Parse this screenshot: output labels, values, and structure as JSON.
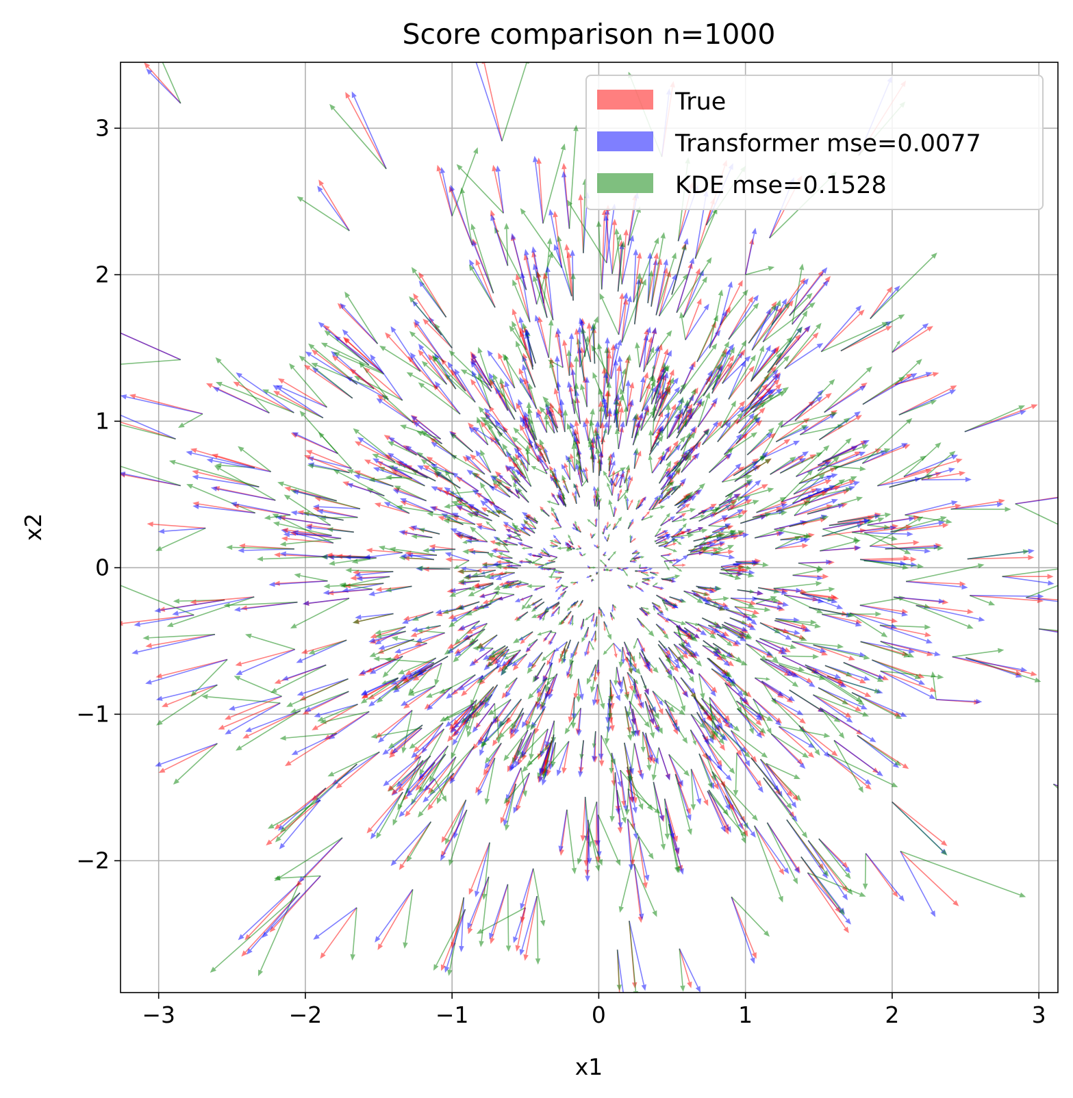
{
  "chart_data": {
    "type": "quiver",
    "title": "Score comparison n=1000",
    "xlabel": "x1",
    "ylabel": "x2",
    "xlim": [
      -3.26,
      3.13
    ],
    "ylim": [
      -2.9,
      3.45
    ],
    "x_ticks": [
      -3,
      -2,
      -1,
      0,
      1,
      2,
      3
    ],
    "y_ticks": [
      -2,
      -1,
      0,
      1,
      2,
      3
    ],
    "x_tick_labels": [
      "−3",
      "−2",
      "−1",
      "0",
      "1",
      "2",
      "3"
    ],
    "y_tick_labels": [
      "−2",
      "−1",
      "0",
      "1",
      "2",
      "3"
    ],
    "grid": true,
    "legend_position": "upper-right",
    "sample_count": 1000,
    "field": "arrows point outward from the origin, length grows with distance (score field)",
    "series": [
      {
        "name": "True",
        "color": "#ff0000",
        "alpha": 0.5
      },
      {
        "name": "Transformer mse=0.0077",
        "color": "#0000ff",
        "alpha": 0.5
      },
      {
        "name": "KDE mse=0.1528",
        "color": "#008000",
        "alpha": 0.5
      }
    ],
    "sample_vectors": [
      {
        "x": -2.85,
        "y": 3.17,
        "u": -0.25,
        "v": 0.28
      },
      {
        "x": -1.7,
        "y": 2.3,
        "u": -0.21,
        "v": 0.35
      },
      {
        "x": -1.0,
        "y": 2.4,
        "u": -0.1,
        "v": 0.35
      },
      {
        "x": -0.65,
        "y": 2.42,
        "u": -0.07,
        "v": 0.33
      },
      {
        "x": -0.38,
        "y": 2.35,
        "u": -0.03,
        "v": 0.45
      },
      {
        "x": -2.85,
        "y": 1.42,
        "u": -0.45,
        "v": 0.2
      },
      {
        "x": -2.7,
        "y": 1.05,
        "u": -0.5,
        "v": 0.13
      },
      {
        "x": -2.85,
        "y": 0.56,
        "u": -0.42,
        "v": 0.08
      },
      {
        "x": -2.68,
        "y": 0.27,
        "u": -0.4,
        "v": 0.03
      },
      {
        "x": -2.55,
        "y": -0.22,
        "u": -0.45,
        "v": -0.07
      },
      {
        "x": -2.6,
        "y": -0.8,
        "u": -0.38,
        "v": -0.15
      },
      {
        "x": -2.6,
        "y": -1.2,
        "u": -0.4,
        "v": -0.2
      },
      {
        "x": -1.65,
        "y": -2.32,
        "u": -0.25,
        "v": -0.35
      },
      {
        "x": -0.92,
        "y": -2.25,
        "u": -0.08,
        "v": -0.35
      },
      {
        "x": -0.5,
        "y": -2.32,
        "u": -0.06,
        "v": -0.3
      },
      {
        "x": 0.55,
        "y": -2.6,
        "u": 0.08,
        "v": -0.27
      },
      {
        "x": 1.5,
        "y": -1.85,
        "u": 0.2,
        "v": -0.2
      },
      {
        "x": 1.82,
        "y": -1.95,
        "u": 0.22,
        "v": -0.3
      },
      {
        "x": 2.3,
        "y": -0.9,
        "u": 0.3,
        "v": -0.02
      },
      {
        "x": 2.75,
        "y": -0.06,
        "u": 0.35,
        "v": 0.0
      },
      {
        "x": 2.4,
        "y": 0.4,
        "u": 0.37,
        "v": 0.06
      },
      {
        "x": 2.2,
        "y": 0.6,
        "u": 0.3,
        "v": 0.05
      },
      {
        "x": 2.02,
        "y": 1.25,
        "u": 0.3,
        "v": 0.08
      },
      {
        "x": 2.0,
        "y": 1.47,
        "u": 0.28,
        "v": 0.18
      },
      {
        "x": 1.65,
        "y": 1.48,
        "u": 0.35,
        "v": 0.17
      },
      {
        "x": 1.85,
        "y": 1.7,
        "u": 0.15,
        "v": 0.22
      },
      {
        "x": 1.0,
        "y": 2.0,
        "u": 0.05,
        "v": 0.25
      },
      {
        "x": 0.2,
        "y": 2.2,
        "u": 0.05,
        "v": 0.35
      },
      {
        "x": 0.02,
        "y": 1.9,
        "u": 0.02,
        "v": 0.55
      },
      {
        "x": -1.0,
        "y": 1.5,
        "u": -0.2,
        "v": 0.2
      }
    ]
  }
}
